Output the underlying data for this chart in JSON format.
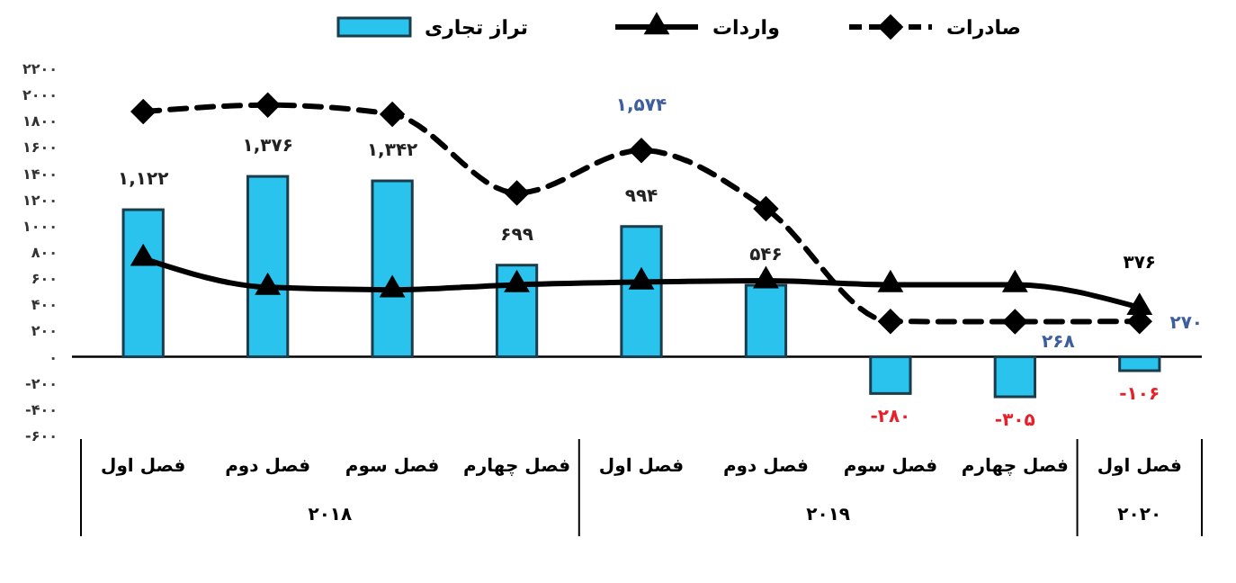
{
  "chart_data": {
    "type": "bar",
    "categories": [
      "فصل اول",
      "فصل دوم",
      "فصل سوم",
      "فصل چهارم",
      "فصل اول",
      "فصل دوم",
      "فصل سوم",
      "فصل چهارم",
      "فصل اول"
    ],
    "annotations": [
      "۲۰۱۸",
      "۲۰۱۹",
      "۲۰۲۰"
    ],
    "series": [
      {
        "name": "تراز تجاری",
        "color": "#29c3ee",
        "values": [
          1122,
          1376,
          1342,
          699,
          994,
          546,
          -280,
          -305,
          -106
        ],
        "value_labels": [
          "۱,۱۲۲",
          "۱,۳۷۶",
          "۱,۳۴۲",
          "۶۹۹",
          "۹۹۴",
          "۵۴۶",
          "-۲۸۰",
          "-۳۰۵",
          "-۱۰۶"
        ]
      },
      {
        "name": "واردات",
        "type": "line",
        "color": "#000000",
        "marker": "triangle",
        "line_style": "solid",
        "values": [
          750,
          530,
          510,
          550,
          570,
          580,
          550,
          550,
          376
        ],
        "value_labels": [
          null,
          null,
          null,
          null,
          null,
          null,
          null,
          null,
          "۳۷۶"
        ]
      },
      {
        "name": "صادرات",
        "type": "line",
        "color": "#000000",
        "marker": "diamond",
        "line_style": "dashed",
        "values": [
          1870,
          1920,
          1850,
          1250,
          1574,
          1130,
          270,
          268,
          270
        ],
        "value_labels": [
          null,
          null,
          null,
          null,
          "۱,۵۷۴",
          null,
          null,
          "۲۶۸",
          "۲۷۰"
        ]
      }
    ],
    "ylim": [
      -600,
      2200
    ],
    "yticks": [
      {
        "value": -600,
        "label": "-۶۰۰"
      },
      {
        "value": -400,
        "label": "-۴۰۰"
      },
      {
        "value": -200,
        "label": "-۲۰۰"
      },
      {
        "value": 0,
        "label": "۰"
      },
      {
        "value": 200,
        "label": "۲۰۰"
      },
      {
        "value": 400,
        "label": "۴۰۰"
      },
      {
        "value": 600,
        "label": "۶۰۰"
      },
      {
        "value": 800,
        "label": "۸۰۰"
      },
      {
        "value": 1000,
        "label": "۱۰۰۰"
      },
      {
        "value": 1200,
        "label": "۱۲۰۰"
      },
      {
        "value": 1400,
        "label": "۱۴۰۰"
      },
      {
        "value": 1600,
        "label": "۱۶۰۰"
      },
      {
        "value": 1800,
        "label": "۱۸۰۰"
      },
      {
        "value": 2000,
        "label": "۲۰۰۰"
      },
      {
        "value": 2200,
        "label": "۲۲۰۰"
      }
    ],
    "legend": "top"
  }
}
